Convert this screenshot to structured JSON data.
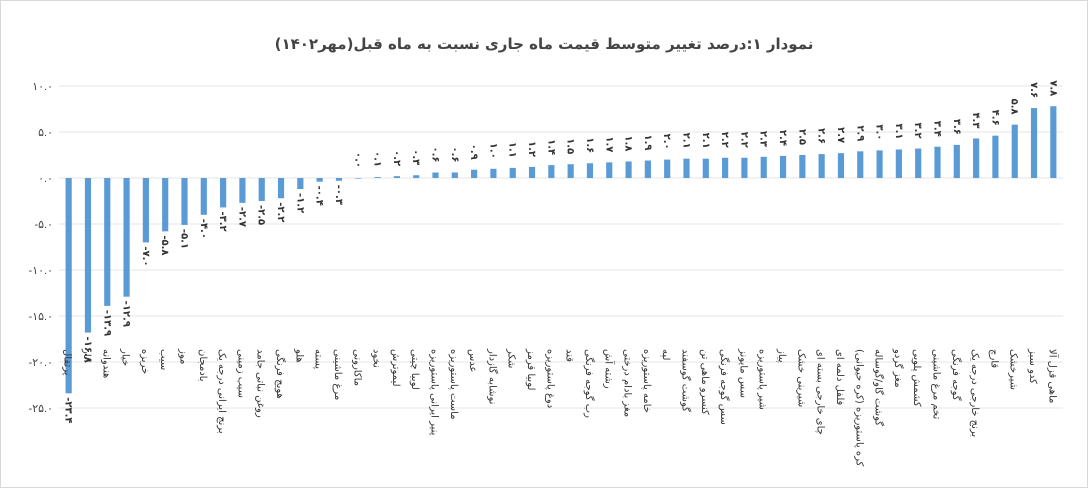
{
  "colors": {
    "bar": "#5b9bd5",
    "grid": "#e6e6e6",
    "text": "#444444"
  },
  "chart_data": {
    "type": "bar",
    "title": "نمودار ۱:درصد تغییر متوسط قیمت ماه جاری نسبت به ماه قبل(مهر۱۴۰۲)",
    "xlabel": "",
    "ylabel": "",
    "ylim": [
      -25,
      10
    ],
    "grid": true,
    "yticks": [
      10,
      5,
      0,
      -5,
      -10,
      -15,
      -20,
      -25
    ],
    "ytick_labels": [
      "۱۰.۰",
      "۵.۰",
      "۰.۰",
      "-۵.۰",
      "-۱۰.۰",
      "-۱۵.۰",
      "-۲۰.۰",
      "-۲۵.۰"
    ],
    "categories": [
      "پرتقال",
      "انار",
      "هندوانه",
      "خیار",
      "خربزه",
      "سیب",
      "موز",
      "بادمجان",
      "برنج ایرانی درجه یک",
      "سیب زمینی",
      "روغن نباتی جامد",
      "هویج فرنگی",
      "هلو",
      "پسته",
      "مرغ ماشینی",
      "ماکارونی",
      "نخود",
      "لیموترش",
      "لوبیا چیتی",
      "پنیر ایرانی پاستوریزه",
      "ماست پاستوریزه",
      "عدس",
      "نوشابه گازدار",
      "شکر",
      "لوبیا قرمز",
      "دوغ پاستوریزه",
      "قند",
      "رب گوجه فرنگی",
      "رشته آش",
      "مغز بادام درختی",
      "خامه پاستوریزه",
      "لپه",
      "گوشت گوسفند",
      "کنسرو ماهی تن",
      "سس گوجه فرنگی",
      "سس مایونز",
      "شیر پاستوریزه",
      "پیاز",
      "شیرینی خشک",
      "چای خارجی بسته ای",
      "فلفل دلمه ای",
      "کره پاستوریزه (کره حیوانی)",
      "گوشت گاو/گوساله",
      "مغز گردو",
      "کشمش پلویی",
      "تخم مرغ ماشینی",
      "گوجه فرنگی",
      "برنج خارجی درجه یک",
      "قارچ",
      "شیرخشک",
      "کدو سبز",
      "ماهی قزل آلا"
    ],
    "values": [
      -23.4,
      -16.8,
      -13.9,
      -12.9,
      -7.0,
      -5.8,
      -5.1,
      -4.0,
      -3.2,
      -2.7,
      -2.5,
      -2.2,
      -1.2,
      -0.4,
      -0.3,
      0.0,
      0.1,
      0.2,
      0.3,
      0.6,
      0.6,
      0.9,
      1.0,
      1.1,
      1.2,
      1.4,
      1.5,
      1.6,
      1.7,
      1.8,
      1.9,
      2.0,
      2.1,
      2.1,
      2.2,
      2.2,
      2.3,
      2.4,
      2.5,
      2.6,
      2.7,
      2.9,
      3.0,
      3.1,
      3.2,
      3.4,
      3.6,
      4.3,
      4.6,
      5.8,
      7.6,
      7.8
    ],
    "data_labels": [
      "-۲۳.۴",
      "-۱۶.۸",
      "-۱۳.۹",
      "-۱۲.۹",
      "-۷.۰",
      "-۵.۸",
      "-۵.۱",
      "-۴.۰",
      "-۳.۲",
      "-۲.۷",
      "-۲.۵",
      "-۲.۲",
      "-۱.۲",
      "-۰.۴",
      "-۰.۳",
      "۰.۰",
      "۰.۱",
      "۰.۲",
      "۰.۳",
      "۰.۶",
      "۰.۶",
      "۰.۹",
      "۱.۰",
      "۱.۱",
      "۱.۲",
      "۱.۴",
      "۱.۵",
      "۱.۶",
      "۱.۷",
      "۱.۸",
      "۱.۹",
      "۲.۰",
      "۲.۱",
      "۲.۱",
      "۲.۲",
      "۲.۲",
      "۲.۳",
      "۲.۴",
      "۲.۵",
      "۲.۶",
      "۲.۷",
      "۲.۹",
      "۳.۰",
      "۳.۱",
      "۳.۲",
      "۳.۴",
      "۳.۶",
      "۴.۳",
      "۴.۶",
      "۵.۸",
      "۷.۶",
      "۷.۸"
    ]
  }
}
